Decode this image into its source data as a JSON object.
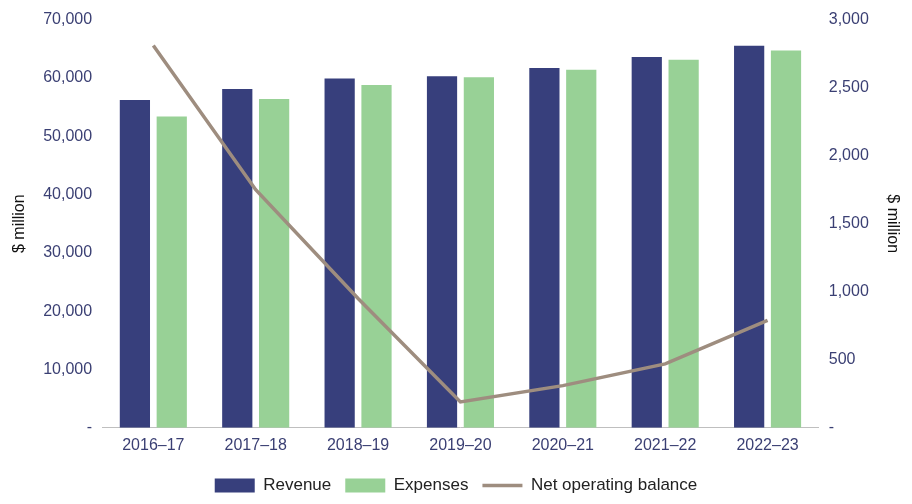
{
  "chart_data": {
    "type": "bar",
    "categories": [
      "2016–17",
      "2017–18",
      "2018–19",
      "2019–20",
      "2020–21",
      "2021–22",
      "2022–23"
    ],
    "series": [
      {
        "name": "Revenue",
        "color": "#373f7c",
        "values": [
          56200,
          58100,
          59900,
          60300,
          61700,
          63600,
          65500
        ]
      },
      {
        "name": "Expenses",
        "color": "#98d196",
        "values": [
          53400,
          56400,
          58800,
          60100,
          61400,
          63100,
          64700
        ]
      },
      {
        "name": "Net operating balance",
        "color": "#9e8d7f",
        "type": "line",
        "axis": "y2",
        "marker": "none",
        "line_style": "solid",
        "values": [
          2810,
          1750,
          950,
          190,
          310,
          470,
          790
        ]
      }
    ],
    "y_label": "$ million",
    "y2_label": "$ million",
    "ylim": [
      0,
      70000
    ],
    "yticks": [
      {
        "value": 0,
        "label": "-"
      },
      {
        "value": 10000,
        "label": "10,000"
      },
      {
        "value": 20000,
        "label": "20,000"
      },
      {
        "value": 30000,
        "label": "30,000"
      },
      {
        "value": 40000,
        "label": "40,000"
      },
      {
        "value": 50000,
        "label": "50,000"
      },
      {
        "value": 60000,
        "label": "60,000"
      },
      {
        "value": 70000,
        "label": "70,000"
      }
    ],
    "y2lim": [
      0,
      3000
    ],
    "y2ticks": [
      {
        "value": 0,
        "label": "-"
      },
      500,
      {
        "value": 1000,
        "label": "1,000"
      },
      {
        "value": 1500,
        "label": "1,500"
      },
      {
        "value": 2000,
        "label": "2,000"
      },
      {
        "value": 2500,
        "label": "2,500"
      },
      {
        "value": 3000,
        "label": "3,000"
      }
    ],
    "grid": false,
    "legend": "bottom"
  }
}
